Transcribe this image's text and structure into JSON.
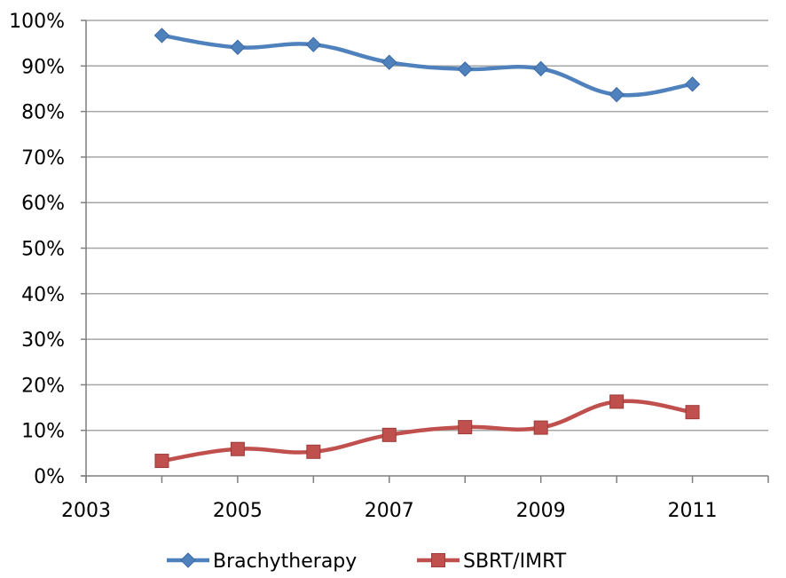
{
  "chart_data": {
    "type": "line",
    "title": "",
    "xlabel": "",
    "ylabel": "",
    "xlim": [
      2003,
      2012
    ],
    "ylim": [
      0,
      100
    ],
    "x_ticks": [
      "2003",
      "2005",
      "2007",
      "2009",
      "2011"
    ],
    "y_ticks": [
      "0%",
      "10%",
      "20%",
      "30%",
      "40%",
      "50%",
      "60%",
      "70%",
      "80%",
      "90%",
      "100%"
    ],
    "grid": true,
    "legend_position": "bottom",
    "series": [
      {
        "name": "Brachytherapy",
        "color": "#4f81bd",
        "marker": "diamond",
        "x": [
          2004,
          2005,
          2006,
          2007,
          2008,
          2009,
          2010,
          2011
        ],
        "values": [
          96.7,
          94.1,
          94.7,
          90.8,
          89.3,
          89.4,
          83.7,
          86.0
        ]
      },
      {
        "name": "SBRT/IMRT",
        "color": "#c0504d",
        "marker": "square",
        "x": [
          2004,
          2005,
          2006,
          2007,
          2008,
          2009,
          2010,
          2011
        ],
        "values": [
          3.3,
          5.9,
          5.3,
          9.0,
          10.7,
          10.6,
          16.3,
          14.0
        ]
      }
    ]
  }
}
